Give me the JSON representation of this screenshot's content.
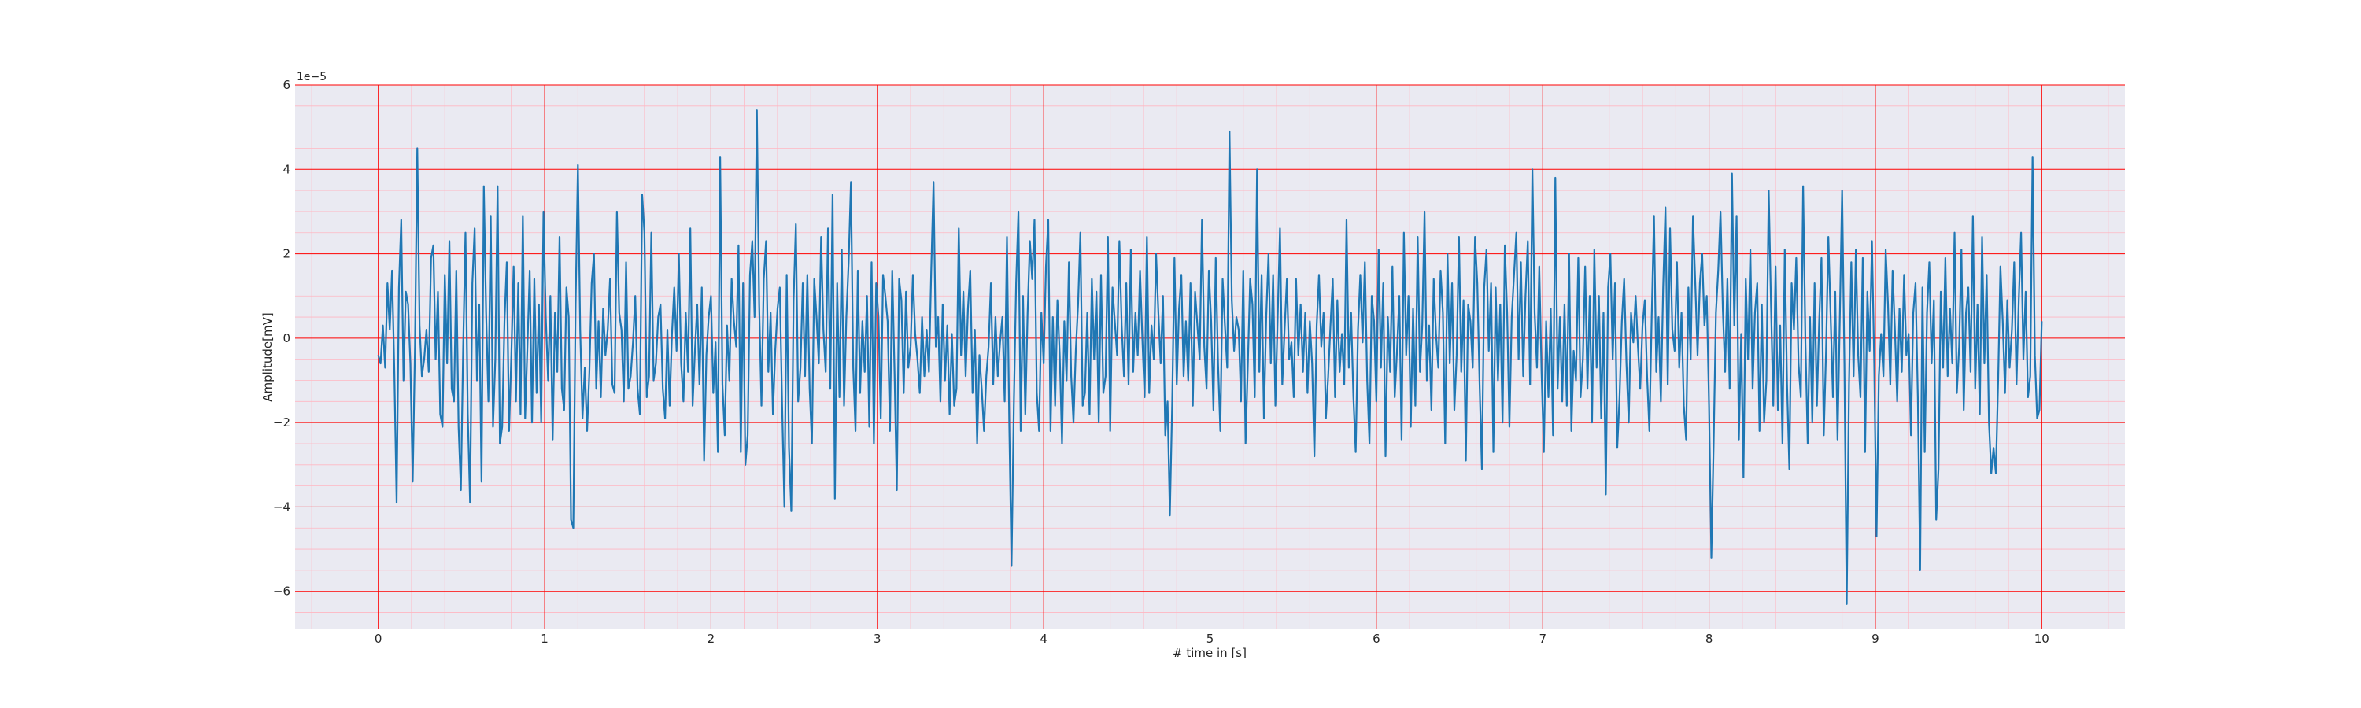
{
  "chart_data": {
    "type": "line",
    "title": "",
    "xlabel": "# time in [s]",
    "ylabel": "Amplitude[mV]",
    "y_offset_text": "1e−5",
    "y_scale_exponent": -5,
    "xlim": [
      -0.5,
      10.5
    ],
    "ylim": [
      -6.9,
      6.0
    ],
    "x_ticks": [
      0,
      1,
      2,
      3,
      4,
      5,
      6,
      7,
      8,
      9,
      10
    ],
    "x_tick_labels": [
      "0",
      "1",
      "2",
      "3",
      "4",
      "5",
      "6",
      "7",
      "8",
      "9",
      "10"
    ],
    "y_ticks": [
      6,
      4,
      2,
      0,
      -2,
      -4,
      -6
    ],
    "y_tick_labels": [
      "6",
      "4",
      "2",
      "0",
      "−2",
      "−4",
      "−6"
    ],
    "grid": "on",
    "minor_grid": "on",
    "legend": "none",
    "colors": {
      "series": "#1f77b4",
      "plot_background": "#eaeaf2",
      "major_grid": "#ff0000",
      "minor_grid": "#ffb6c1",
      "figure_background": "#ffffff"
    },
    "series": [
      {
        "x_start": 0,
        "x_end": 10,
        "values": [
          -0.4,
          -0.6,
          0.3,
          -0.7,
          1.3,
          0.2,
          1.6,
          -0.8,
          -3.9,
          1.2,
          2.8,
          -1.0,
          1.1,
          0.8,
          -0.6,
          -3.4,
          -0.2,
          4.5,
          0.3,
          -0.9,
          -0.5,
          0.2,
          -0.8,
          1.9,
          2.2,
          -0.5,
          1.1,
          -1.8,
          -2.1,
          1.5,
          -0.6,
          2.3,
          -1.2,
          -1.5,
          1.6,
          -2.1,
          -3.6,
          -0.2,
          2.5,
          -1.8,
          -3.9,
          1.3,
          2.6,
          -1.0,
          0.8,
          -3.4,
          3.6,
          0.6,
          -1.5,
          2.9,
          -2.1,
          -0.5,
          3.6,
          -2.5,
          -2.1,
          0.4,
          1.8,
          -2.2,
          -0.4,
          1.7,
          -1.5,
          1.3,
          -1.8,
          2.9,
          -1.9,
          -0.2,
          1.6,
          -2.0,
          1.4,
          -1.3,
          0.8,
          -2.0,
          3.0,
          0.5,
          -1.0,
          1.0,
          -2.4,
          0.6,
          -0.8,
          2.4,
          -1.2,
          -1.7,
          1.2,
          0.5,
          -4.3,
          -4.5,
          0.8,
          4.1,
          0.2,
          -1.9,
          -0.7,
          -2.2,
          -0.8,
          1.3,
          2.0,
          -1.2,
          0.4,
          -1.4,
          0.7,
          -0.4,
          0.2,
          1.4,
          -1.1,
          -1.3,
          3.0,
          0.6,
          0.2,
          -1.5,
          1.8,
          -1.2,
          -0.9,
          -0.1,
          1.0,
          -1.2,
          -1.8,
          3.4,
          2.5,
          -1.4,
          -0.9,
          2.5,
          -1.0,
          -0.6,
          0.5,
          0.8,
          -1.2,
          -1.9,
          0.2,
          -1.6,
          0.1,
          1.2,
          -0.3,
          2.0,
          -0.6,
          -1.5,
          0.6,
          -0.8,
          2.6,
          -1.6,
          -0.3,
          0.8,
          -1.1,
          1.2,
          -2.9,
          -0.4,
          0.5,
          1.0,
          -1.3,
          -0.1,
          -2.7,
          4.3,
          -1.1,
          -2.3,
          0.3,
          -1.0,
          1.4,
          0.4,
          -0.2,
          2.2,
          -2.7,
          1.3,
          -3.0,
          -2.3,
          1.5,
          2.3,
          0.5,
          5.4,
          0.8,
          -1.6,
          1.4,
          2.3,
          -0.8,
          0.6,
          -1.8,
          -0.3,
          0.7,
          1.2,
          -1.6,
          -4.0,
          1.5,
          -2.6,
          -4.1,
          0.9,
          2.7,
          -1.5,
          -0.7,
          1.3,
          -0.9,
          1.5,
          -1.2,
          -2.5,
          1.4,
          0.5,
          -0.6,
          2.4,
          0.2,
          -0.8,
          2.6,
          -1.2,
          3.4,
          -3.8,
          1.3,
          -1.4,
          2.1,
          -1.6,
          0.5,
          1.8,
          3.7,
          -0.7,
          -2.2,
          1.6,
          -1.3,
          0.4,
          -0.8,
          1.0,
          -2.1,
          1.8,
          -2.5,
          1.3,
          0.5,
          -1.9,
          1.5,
          1.0,
          0.4,
          -2.2,
          1.6,
          -0.8,
          -3.6,
          1.4,
          0.9,
          -1.3,
          1.1,
          -0.7,
          -0.2,
          1.5,
          0.1,
          -0.5,
          -1.3,
          0.5,
          -0.9,
          0.2,
          -0.8,
          1.6,
          3.7,
          -0.2,
          0.5,
          -1.5,
          0.8,
          -1.0,
          0.3,
          -1.8,
          0.1,
          -1.6,
          -1.2,
          2.6,
          -0.4,
          1.1,
          -0.9,
          0.7,
          1.6,
          -1.3,
          0.2,
          -2.5,
          -0.4,
          -1.2,
          -2.2,
          -0.9,
          -0.2,
          1.3,
          -1.1,
          0.5,
          -0.9,
          -0.1,
          0.5,
          -1.5,
          2.4,
          -2.0,
          -5.4,
          -1.6,
          1.3,
          3.0,
          -2.2,
          1.0,
          -1.8,
          0.6,
          2.3,
          1.4,
          2.8,
          -1.3,
          -2.2,
          0.6,
          -0.6,
          1.7,
          2.8,
          -2.2,
          0.5,
          -1.6,
          0.9,
          -0.4,
          -2.5,
          0.4,
          -1.0,
          1.8,
          -0.9,
          -2.0,
          -0.3,
          0.8,
          2.5,
          -1.6,
          -1.3,
          0.6,
          -1.8,
          1.4,
          -0.5,
          1.1,
          -2.0,
          1.5,
          -1.3,
          -0.9,
          2.4,
          -2.2,
          1.2,
          0.4,
          -0.4,
          2.3,
          0.3,
          -0.9,
          1.3,
          -1.1,
          2.1,
          -0.8,
          0.6,
          -0.4,
          1.6,
          0.0,
          -1.4,
          2.4,
          -1.3,
          0.3,
          -0.5,
          2.0,
          0.6,
          -0.6,
          1.0,
          -2.3,
          -1.5,
          -4.2,
          -1.6,
          1.9,
          -1.1,
          0.7,
          1.5,
          -0.9,
          0.4,
          -1.0,
          1.3,
          -1.6,
          1.1,
          0.3,
          -0.5,
          2.8,
          -0.2,
          -1.2,
          1.6,
          0.4,
          -1.7,
          1.9,
          -0.6,
          -2.2,
          1.4,
          0.3,
          -0.7,
          4.9,
          0.9,
          -0.3,
          0.5,
          0.2,
          -1.5,
          1.6,
          -2.5,
          -0.6,
          1.4,
          0.8,
          -1.4,
          4.0,
          -0.8,
          1.5,
          -1.9,
          0.5,
          2.0,
          -0.6,
          1.5,
          -1.6,
          0.5,
          2.6,
          -1.1,
          0.2,
          1.4,
          -0.5,
          -0.1,
          -1.4,
          1.4,
          -0.4,
          0.8,
          -0.8,
          0.6,
          -1.3,
          0.4,
          -0.6,
          -2.8,
          0.3,
          1.5,
          -0.2,
          0.6,
          -1.9,
          -0.9,
          0.3,
          1.4,
          -1.4,
          0.9,
          -0.8,
          0.1,
          -1.1,
          2.8,
          -0.7,
          0.6,
          -1.4,
          -2.7,
          0.2,
          1.5,
          -0.1,
          1.8,
          -1.0,
          -2.5,
          1.0,
          0.4,
          -1.5,
          2.1,
          -0.7,
          1.3,
          -2.8,
          0.5,
          -0.8,
          1.7,
          -1.4,
          -0.3,
          1.0,
          -2.4,
          2.5,
          -0.4,
          1.0,
          -2.1,
          0.7,
          -1.6,
          2.4,
          -0.8,
          0.3,
          3.0,
          -1.0,
          0.3,
          -1.7,
          1.4,
          0.1,
          -0.7,
          1.6,
          0.6,
          -2.5,
          2.0,
          -0.6,
          1.3,
          -1.7,
          -0.4,
          2.4,
          -0.8,
          0.9,
          -2.9,
          0.8,
          0.4,
          -0.7,
          2.4,
          1.3,
          -1.1,
          -3.1,
          1.2,
          2.1,
          -0.3,
          1.3,
          -2.7,
          1.2,
          -1.0,
          0.8,
          -2.0,
          2.2,
          0.6,
          -2.1,
          0.5,
          1.5,
          2.5,
          -0.5,
          1.8,
          -0.9,
          1.0,
          2.3,
          -1.1,
          4.0,
          0.6,
          -0.7,
          1.7,
          -0.8,
          -2.7,
          0.4,
          -1.4,
          0.7,
          -2.3,
          3.8,
          -1.2,
          0.5,
          -1.5,
          0.8,
          -1.6,
          2.0,
          -2.2,
          -0.3,
          -1.0,
          1.9,
          -1.4,
          -0.5,
          1.7,
          -1.2,
          1.0,
          -2.0,
          2.1,
          -0.7,
          1.0,
          -1.9,
          0.6,
          -3.7,
          1.2,
          2.0,
          -0.5,
          1.3,
          -2.6,
          -1.4,
          0.4,
          1.4,
          -0.6,
          -2.0,
          0.6,
          -0.1,
          1.0,
          -0.2,
          -1.2,
          0.3,
          0.9,
          -0.9,
          -2.2,
          0.5,
          2.9,
          -0.8,
          0.5,
          -1.5,
          1.2,
          3.1,
          -1.1,
          2.6,
          0.2,
          -0.3,
          1.8,
          -0.7,
          0.6,
          -1.6,
          -2.4,
          1.2,
          -0.5,
          2.9,
          1.3,
          -0.4,
          1.3,
          2.0,
          0.3,
          1.0,
          -1.6,
          -5.2,
          -2.5,
          0.6,
          1.6,
          3.0,
          0.7,
          -0.8,
          1.4,
          -1.2,
          3.9,
          0.3,
          2.9,
          -2.4,
          0.1,
          -3.3,
          1.4,
          -0.5,
          2.1,
          -1.2,
          0.6,
          1.3,
          -2.2,
          0.8,
          -2.0,
          -1.0,
          3.5,
          0.8,
          -1.6,
          1.7,
          -1.7,
          0.3,
          -2.5,
          2.1,
          -1.1,
          -3.1,
          1.3,
          0.2,
          1.9,
          -0.6,
          -1.4,
          3.6,
          -0.1,
          -2.5,
          0.5,
          -2.0,
          1.3,
          -1.6,
          0.4,
          1.9,
          -2.3,
          -0.3,
          2.4,
          0.5,
          -1.4,
          1.1,
          -2.4,
          0.5,
          3.5,
          -0.6,
          -6.3,
          -1.1,
          1.8,
          -0.9,
          2.1,
          -0.4,
          -1.4,
          1.9,
          -2.7,
          1.1,
          -0.3,
          2.3,
          -0.6,
          -4.7,
          -0.9,
          0.1,
          -0.9,
          2.1,
          0.8,
          -1.1,
          1.6,
          0.2,
          -1.5,
          0.7,
          -0.8,
          1.5,
          -0.4,
          0.1,
          -2.3,
          0.6,
          1.3,
          -1.4,
          -5.5,
          1.2,
          -2.7,
          0.6,
          1.8,
          -0.6,
          0.9,
          -4.3,
          -3.1,
          1.1,
          -0.7,
          1.9,
          -0.9,
          0.7,
          -0.6,
          2.5,
          -1.3,
          -0.2,
          2.1,
          -1.7,
          0.6,
          1.2,
          -0.8,
          2.9,
          -1.2,
          0.8,
          -1.8,
          2.4,
          -0.6,
          1.5,
          -2.0,
          -3.2,
          -2.6,
          -3.2,
          -1.0,
          1.7,
          0.4,
          -1.3,
          0.9,
          -0.7,
          0.2,
          1.8,
          -1.1,
          0.9,
          2.5,
          -0.5,
          1.1,
          -1.4,
          -0.9,
          4.3,
          -0.4,
          -1.9,
          -1.7,
          0.4
        ]
      }
    ]
  }
}
